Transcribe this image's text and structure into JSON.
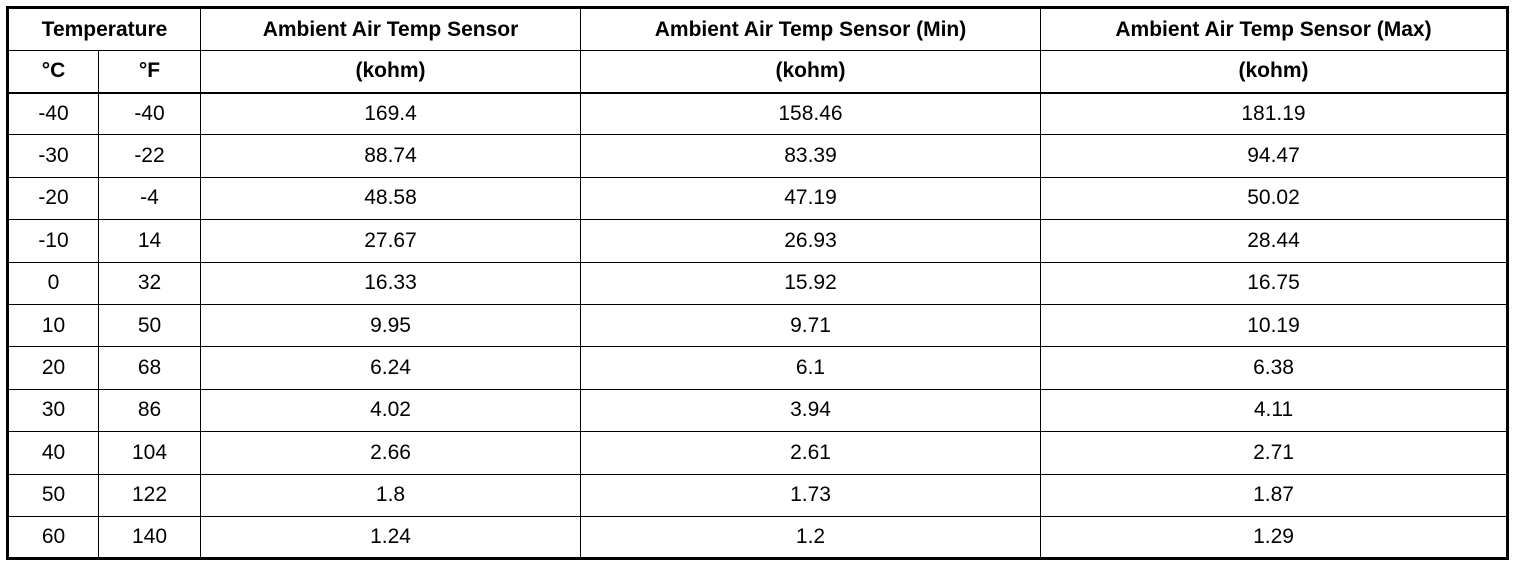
{
  "table": {
    "header": {
      "row1": [
        "Temperature",
        "Ambient Air Temp Sensor",
        "Ambient Air Temp Sensor (Min)",
        "Ambient Air Temp Sensor (Max)"
      ],
      "row2": [
        "°C",
        "°F",
        "(kohm)",
        "(kohm)",
        "(kohm)"
      ]
    },
    "rows": [
      [
        -40,
        -40,
        169.4,
        158.46,
        181.19
      ],
      [
        -30,
        -22,
        88.74,
        83.39,
        94.47
      ],
      [
        -20,
        -4,
        48.58,
        47.19,
        50.02
      ],
      [
        -10,
        14,
        27.67,
        26.93,
        28.44
      ],
      [
        0,
        32,
        16.33,
        15.92,
        16.75
      ],
      [
        10,
        50,
        9.95,
        9.71,
        10.19
      ],
      [
        20,
        68,
        6.24,
        6.1,
        6.38
      ],
      [
        30,
        86,
        4.02,
        3.94,
        4.11
      ],
      [
        40,
        104,
        2.66,
        2.61,
        2.71
      ],
      [
        50,
        122,
        1.8,
        1.73,
        1.87
      ],
      [
        60,
        140,
        1.24,
        1.2,
        1.29
      ]
    ]
  }
}
